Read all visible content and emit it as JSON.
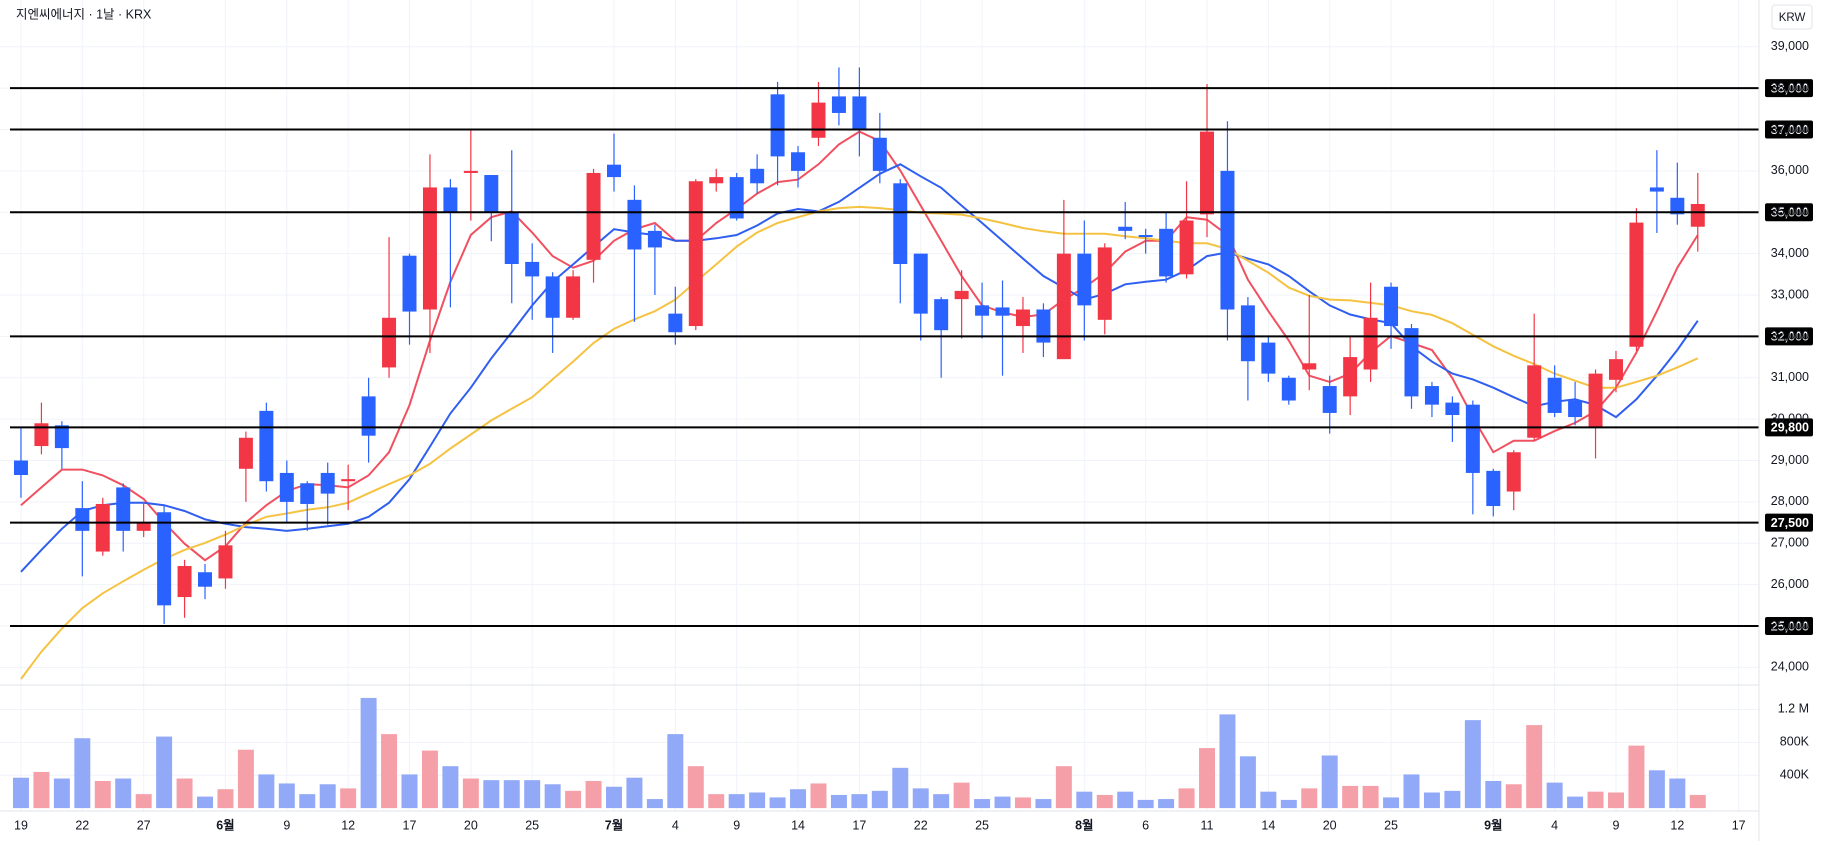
{
  "chart_data": {
    "type": "candlestick",
    "title": "지엔씨에너지 · 1날 · KRX",
    "currency": "KRW",
    "categories": [
      "19",
      null,
      null,
      "22",
      null,
      null,
      "27",
      null,
      null,
      null,
      "6월",
      null,
      null,
      "9",
      null,
      null,
      "12",
      null,
      null,
      "17",
      null,
      null,
      "20",
      null,
      null,
      "25",
      null,
      null,
      null,
      "7월",
      null,
      null,
      "4",
      null,
      null,
      "9",
      null,
      null,
      "14",
      null,
      null,
      "17",
      null,
      null,
      "22",
      null,
      null,
      "25",
      null,
      null,
      null,
      null,
      "8월",
      null,
      null,
      "6",
      null,
      null,
      "11",
      null,
      null,
      "14",
      null,
      null,
      "20",
      null,
      null,
      "25",
      null,
      null,
      null,
      null,
      "9월",
      null,
      null,
      "4",
      null,
      null,
      "9",
      null,
      null,
      "12",
      null,
      null,
      "17"
    ],
    "open": [
      29000,
      29350,
      29850,
      27850,
      26800,
      28350,
      27300,
      27750,
      25700,
      26300,
      26150,
      28800,
      30200,
      28700,
      28450,
      28700,
      28500,
      30550,
      31250,
      33950,
      32650,
      35600,
      35950,
      35900,
      35000,
      33800,
      33450,
      32450,
      33850,
      36150,
      35300,
      34550,
      32550,
      32250,
      35700,
      35850,
      36050,
      37850,
      36450,
      36800,
      37800,
      37800,
      36800,
      35700,
      34000,
      32900,
      32900,
      32750,
      32700,
      32250,
      32650,
      31450,
      34000,
      32400,
      34650,
      34450,
      34600,
      33500,
      34950,
      36000,
      32750,
      31850,
      31000,
      31200,
      30800,
      30550,
      31200,
      33200,
      32200,
      30800,
      30400,
      30350,
      28750,
      28250,
      29550,
      31000,
      30450,
      29800,
      30950,
      31750,
      35600,
      35350,
      34650,
      null,
      null
    ],
    "high": [
      29800,
      30400,
      29950,
      28500,
      28100,
      28450,
      28000,
      27900,
      26600,
      26500,
      27300,
      29700,
      30400,
      29000,
      28500,
      28950,
      28900,
      31000,
      34400,
      34000,
      36400,
      35800,
      37000,
      35900,
      36500,
      34250,
      33550,
      33600,
      36050,
      36900,
      35650,
      34700,
      33200,
      35800,
      36050,
      35950,
      36400,
      38150,
      36600,
      38150,
      38500,
      38500,
      37400,
      35800,
      34000,
      32950,
      33600,
      33300,
      33350,
      32950,
      32800,
      35300,
      34800,
      34250,
      35250,
      34600,
      35000,
      35750,
      38100,
      37200,
      32950,
      32000,
      31050,
      33000,
      31050,
      32000,
      33300,
      33300,
      32300,
      30900,
      30550,
      30450,
      28800,
      29250,
      32550,
      31300,
      30900,
      31200,
      31650,
      35100,
      36500,
      36200,
      35950,
      null,
      null
    ],
    "low": [
      28100,
      29150,
      28800,
      26200,
      26700,
      26800,
      27150,
      25050,
      25200,
      25650,
      25900,
      28000,
      28250,
      27500,
      27300,
      27450,
      27800,
      28950,
      31000,
      31800,
      31600,
      32700,
      34800,
      34300,
      32800,
      32400,
      31600,
      32400,
      33300,
      35500,
      32350,
      33000,
      31800,
      32150,
      35500,
      34800,
      35450,
      35650,
      35600,
      36600,
      37100,
      36350,
      35700,
      32800,
      31900,
      31000,
      31950,
      31950,
      31050,
      31600,
      31500,
      31450,
      31900,
      32050,
      34350,
      34000,
      33300,
      33400,
      34400,
      31900,
      30450,
      30900,
      30350,
      30700,
      29650,
      30100,
      30900,
      31700,
      30250,
      30050,
      29450,
      27700,
      27650,
      27800,
      29500,
      30050,
      29850,
      29050,
      30650,
      31650,
      34500,
      34700,
      34050,
      null,
      null
    ],
    "close": [
      28650,
      29900,
      29300,
      27300,
      27950,
      27300,
      27500,
      25500,
      26450,
      25950,
      26950,
      29550,
      28500,
      28000,
      27950,
      28200,
      28550,
      29600,
      32450,
      32600,
      35600,
      35000,
      36000,
      35000,
      33750,
      33450,
      32450,
      33450,
      35950,
      35850,
      34100,
      34150,
      32100,
      35750,
      35850,
      34850,
      35700,
      36350,
      36000,
      37650,
      37400,
      37000,
      36000,
      33750,
      32550,
      32150,
      33100,
      32500,
      32500,
      32650,
      31850,
      34000,
      32750,
      34150,
      34550,
      34400,
      33450,
      34800,
      36950,
      32650,
      31400,
      31100,
      30450,
      31350,
      30150,
      31500,
      32450,
      32250,
      30550,
      30350,
      30100,
      28700,
      27900,
      29200,
      31300,
      30150,
      30050,
      31100,
      31450,
      34750,
      35500,
      34950,
      35200,
      null,
      null
    ],
    "volume": [
      370000,
      440000,
      360000,
      850000,
      330000,
      360000,
      170000,
      870000,
      360000,
      140000,
      230000,
      710000,
      410000,
      300000,
      170000,
      290000,
      240000,
      1340000,
      900000,
      410000,
      700000,
      510000,
      360000,
      340000,
      340000,
      340000,
      290000,
      210000,
      330000,
      260000,
      370000,
      110000,
      900000,
      510000,
      170000,
      170000,
      190000,
      130000,
      230000,
      300000,
      160000,
      170000,
      210000,
      490000,
      240000,
      170000,
      310000,
      110000,
      140000,
      130000,
      110000,
      510000,
      200000,
      160000,
      200000,
      100000,
      110000,
      240000,
      730000,
      1140000,
      630000,
      200000,
      100000,
      240000,
      640000,
      270000,
      270000,
      130000,
      410000,
      190000,
      210000,
      1070000,
      330000,
      290000,
      1010000,
      310000,
      140000,
      200000,
      190000,
      760000,
      460000,
      360000,
      160000,
      null,
      null
    ],
    "ma_lines": [
      {
        "color": "#f0505f",
        "values": [
          27920,
          28350,
          28780,
          28780,
          28640,
          28400,
          28070,
          27500,
          26990,
          26590,
          26930,
          27500,
          27920,
          28260,
          28430,
          28400,
          28350,
          28640,
          29200,
          30340,
          31900,
          33320,
          34450,
          34880,
          35020,
          34510,
          33940,
          33660,
          33830,
          34310,
          34590,
          34740,
          34310,
          34310,
          34740,
          35080,
          35450,
          35730,
          35790,
          36160,
          36640,
          36950,
          36720,
          36010,
          35160,
          34310,
          33460,
          32750,
          32580,
          32470,
          32530,
          32890,
          33180,
          33540,
          34050,
          34310,
          34310,
          34880,
          34820,
          34450,
          33370,
          32610,
          31900,
          31050,
          30900,
          31100,
          31610,
          32010,
          31840,
          31670,
          30990,
          30050,
          29200,
          29480,
          29480,
          29710,
          29910,
          30190,
          30760,
          31610,
          32610,
          33660,
          34450,
          null,
          null
        ]
      },
      {
        "color": "#2f5ef0",
        "values": [
          26310,
          26840,
          27350,
          27780,
          27920,
          27980,
          27980,
          27920,
          27780,
          27580,
          27470,
          27390,
          27350,
          27300,
          27350,
          27410,
          27470,
          27640,
          27980,
          28550,
          29340,
          30140,
          30760,
          31470,
          32100,
          32750,
          33320,
          33740,
          34170,
          34590,
          34510,
          34450,
          34310,
          34310,
          34370,
          34450,
          34680,
          34970,
          35080,
          35020,
          35250,
          35590,
          35930,
          36160,
          35870,
          35590,
          35160,
          34740,
          34310,
          33880,
          33460,
          33180,
          32890,
          33030,
          33260,
          33320,
          33370,
          33600,
          33940,
          34030,
          33880,
          33740,
          33460,
          33090,
          32750,
          32530,
          32410,
          32320,
          31760,
          31390,
          31100,
          30960,
          30760,
          30530,
          30310,
          30420,
          30480,
          30340,
          30050,
          30480,
          31050,
          31670,
          32380,
          null,
          null
        ]
      },
      {
        "color": "#f5c242",
        "values": [
          23720,
          24380,
          24940,
          25430,
          25790,
          26080,
          26360,
          26620,
          26840,
          27010,
          27210,
          27440,
          27640,
          27720,
          27810,
          27870,
          27980,
          28210,
          28430,
          28640,
          28920,
          29290,
          29630,
          29970,
          30250,
          30530,
          30960,
          31390,
          31840,
          32180,
          32410,
          32610,
          32890,
          33320,
          33740,
          34170,
          34510,
          34740,
          34880,
          35020,
          35100,
          35130,
          35100,
          35050,
          34990,
          34970,
          34940,
          34850,
          34740,
          34620,
          34540,
          34480,
          34480,
          34480,
          34420,
          34370,
          34310,
          34250,
          34250,
          34110,
          33830,
          33540,
          33180,
          32980,
          32890,
          32870,
          32810,
          32750,
          32610,
          32520,
          32320,
          32040,
          31760,
          31530,
          31330,
          31100,
          30930,
          30760,
          30760,
          30900,
          31050,
          31250,
          31470,
          null,
          null
        ]
      }
    ],
    "up_color": "#f23645",
    "down_color": "#2962ff",
    "up_volume_color": "#f5a0a8",
    "down_volume_color": "#92a9f7",
    "ylim": [
      23580,
      40130
    ],
    "yticks": [
      {
        "value": 24000,
        "label": "24,000"
      },
      {
        "value": 25000,
        "label": "25,000"
      },
      {
        "value": 26000,
        "label": "26,000"
      },
      {
        "value": 27000,
        "label": "27,000"
      },
      {
        "value": 28000,
        "label": "28,000"
      },
      {
        "value": 29000,
        "label": "29,000"
      },
      {
        "value": 30000,
        "label": "30,000"
      },
      {
        "value": 31000,
        "label": "31,000"
      },
      {
        "value": 32000,
        "label": "32,000"
      },
      {
        "value": 33000,
        "label": "33,000"
      },
      {
        "value": 34000,
        "label": "34,000"
      },
      {
        "value": 35000,
        "label": "35,000"
      },
      {
        "value": 36000,
        "label": "36,000"
      },
      {
        "value": 37000,
        "label": "37,000"
      },
      {
        "value": 38000,
        "label": "38,000"
      },
      {
        "value": 39000,
        "label": "39,000"
      }
    ],
    "levels": [
      {
        "value": 38000,
        "label": "38,000"
      },
      {
        "value": 37000,
        "label": "37,000"
      },
      {
        "value": 35000,
        "label": "35,000"
      },
      {
        "value": 32000,
        "label": "32,000"
      },
      {
        "value": 29800,
        "label": "29,800"
      },
      {
        "value": 27500,
        "label": "27,500"
      },
      {
        "value": 25000,
        "label": "25,000"
      }
    ],
    "volume_lim": [
      0,
      1500000
    ],
    "volume_ticks": [
      {
        "value": 400000,
        "label": "400K"
      },
      {
        "value": 800000,
        "label": "800K"
      },
      {
        "value": 1200000,
        "label": "1.2 M"
      }
    ],
    "grid": true
  }
}
